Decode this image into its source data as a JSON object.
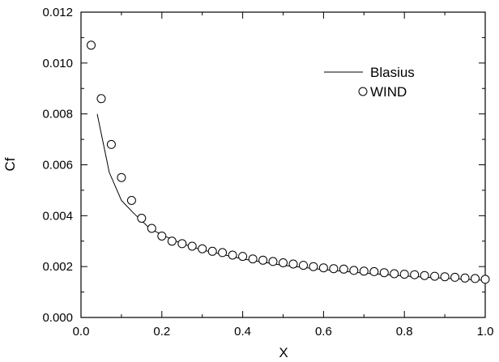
{
  "chart_data": {
    "type": "line",
    "xlabel": "X",
    "ylabel": "Cf",
    "xlim": [
      0.0,
      1.0
    ],
    "ylim": [
      0.0,
      0.012
    ],
    "x_ticks": [
      "0.0",
      "0.2",
      "0.4",
      "0.6",
      "0.8",
      "1.0"
    ],
    "y_ticks": [
      "0.000",
      "0.002",
      "0.004",
      "0.006",
      "0.008",
      "0.010",
      "0.012"
    ],
    "grid": false,
    "legend_position": "top-right",
    "series": [
      {
        "name": "Blasius",
        "style": "line",
        "color": "#000000",
        "points": [
          [
            0.04,
            0.008
          ],
          [
            0.07,
            0.0057
          ],
          [
            0.1,
            0.0046
          ],
          [
            0.13,
            0.0041
          ],
          [
            0.17,
            0.0035
          ],
          [
            0.2,
            0.00325
          ],
          [
            0.25,
            0.0029
          ],
          [
            0.3,
            0.00265
          ],
          [
            0.4,
            0.0023
          ],
          [
            0.5,
            0.00205
          ],
          [
            0.6,
            0.00188
          ],
          [
            0.7,
            0.00174
          ],
          [
            0.8,
            0.00163
          ],
          [
            0.9,
            0.00154
          ],
          [
            1.0,
            0.00146
          ]
        ]
      },
      {
        "name": "WIND",
        "style": "markers",
        "marker": "open-circle",
        "color": "#000000",
        "points": [
          [
            0.025,
            0.0107
          ],
          [
            0.05,
            0.0086
          ],
          [
            0.075,
            0.0068
          ],
          [
            0.1,
            0.0055
          ],
          [
            0.125,
            0.0046
          ],
          [
            0.15,
            0.0039
          ],
          [
            0.175,
            0.0035
          ],
          [
            0.2,
            0.0032
          ],
          [
            0.225,
            0.003
          ],
          [
            0.25,
            0.0029
          ],
          [
            0.275,
            0.0028
          ],
          [
            0.3,
            0.0027
          ],
          [
            0.325,
            0.0026
          ],
          [
            0.35,
            0.00255
          ],
          [
            0.375,
            0.00245
          ],
          [
            0.4,
            0.0024
          ],
          [
            0.425,
            0.0023
          ],
          [
            0.45,
            0.00225
          ],
          [
            0.475,
            0.0022
          ],
          [
            0.5,
            0.00215
          ],
          [
            0.525,
            0.0021
          ],
          [
            0.55,
            0.00205
          ],
          [
            0.575,
            0.002
          ],
          [
            0.6,
            0.00195
          ],
          [
            0.625,
            0.00192
          ],
          [
            0.65,
            0.0019
          ],
          [
            0.675,
            0.00185
          ],
          [
            0.7,
            0.00182
          ],
          [
            0.725,
            0.0018
          ],
          [
            0.75,
            0.00176
          ],
          [
            0.775,
            0.00172
          ],
          [
            0.8,
            0.0017
          ],
          [
            0.825,
            0.00168
          ],
          [
            0.85,
            0.00165
          ],
          [
            0.875,
            0.00162
          ],
          [
            0.9,
            0.0016
          ],
          [
            0.925,
            0.00158
          ],
          [
            0.95,
            0.00155
          ],
          [
            0.975,
            0.00153
          ],
          [
            1.0,
            0.0015
          ]
        ]
      }
    ]
  }
}
